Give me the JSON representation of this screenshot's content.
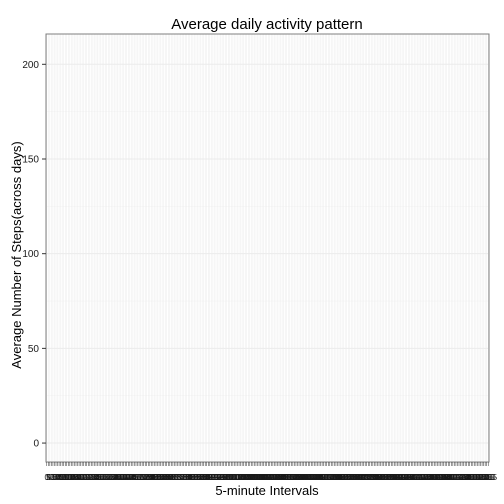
{
  "chart_data": {
    "type": "line",
    "title": "Average daily activity pattern",
    "xlabel": "5-minute Intervals",
    "ylabel": "Average Number of Steps(across days)",
    "ylim": [
      -10,
      216
    ],
    "yticks": [
      0,
      50,
      100,
      150,
      200
    ],
    "x_axis": "categorical, 288 intervals",
    "x_categories": [
      "0",
      "5",
      "10",
      "15",
      "20",
      "25",
      "30",
      "35",
      "40",
      "45",
      "50",
      "55",
      "100",
      "105",
      "110",
      "115",
      "120",
      "125",
      "130",
      "135",
      "140",
      "145",
      "150",
      "155",
      "200",
      "205",
      "210",
      "215",
      "220",
      "225",
      "230",
      "235",
      "240",
      "245",
      "250",
      "255",
      "300",
      "305",
      "310",
      "315",
      "320",
      "325",
      "330",
      "335",
      "340",
      "345",
      "350",
      "355",
      "400",
      "405",
      "410",
      "415",
      "420",
      "425",
      "430",
      "435",
      "440",
      "445",
      "450",
      "455",
      "500",
      "505",
      "510",
      "515",
      "520",
      "525",
      "530",
      "535",
      "540",
      "545",
      "550",
      "555",
      "600",
      "605",
      "610",
      "615",
      "620",
      "625",
      "630",
      "635",
      "640",
      "645",
      "650",
      "655",
      "700",
      "705",
      "710",
      "715",
      "720",
      "725",
      "730",
      "735",
      "740",
      "745",
      "750",
      "755",
      "800",
      "805",
      "810",
      "815",
      "820",
      "825",
      "830",
      "835",
      "840",
      "845",
      "850",
      "855",
      "900",
      "905",
      "910",
      "915",
      "920",
      "925",
      "930",
      "935",
      "940",
      "945",
      "950",
      "955",
      "1000",
      "1005",
      "1010",
      "1015",
      "1020",
      "1025",
      "1030",
      "1035",
      "1040",
      "1045",
      "1050",
      "1055",
      "1100",
      "1105",
      "1110",
      "1115",
      "1120",
      "1125",
      "1130",
      "1135",
      "1140",
      "1145",
      "1150",
      "1155",
      "1200",
      "1205",
      "1210",
      "1215",
      "1220",
      "1225",
      "1230",
      "1235",
      "1240",
      "1245",
      "1250",
      "1255",
      "1300",
      "1305",
      "1310",
      "1315",
      "1320",
      "1325",
      "1330",
      "1335",
      "1340",
      "1345",
      "1350",
      "1355",
      "1400",
      "1405",
      "1410",
      "1415",
      "1420",
      "1425",
      "1430",
      "1435",
      "1440",
      "1445",
      "1450",
      "1455",
      "1500",
      "1505",
      "1510",
      "1515",
      "1520",
      "1525",
      "1530",
      "1535",
      "1540",
      "1545",
      "1550",
      "1555",
      "1600",
      "1605",
      "1610",
      "1615",
      "1620",
      "1625",
      "1630",
      "1635",
      "1640",
      "1645",
      "1650",
      "1655",
      "1700",
      "1705",
      "1710",
      "1715",
      "1720",
      "1725",
      "1730",
      "1735",
      "1740",
      "1745",
      "1750",
      "1755",
      "1800",
      "1805",
      "1810",
      "1815",
      "1820",
      "1825",
      "1830",
      "1835",
      "1840",
      "1845",
      "1850",
      "1855",
      "1900",
      "1905",
      "1910",
      "1915",
      "1920",
      "1925",
      "1930",
      "1935",
      "1940",
      "1945",
      "1950",
      "1955",
      "2000",
      "2005",
      "2010",
      "2015",
      "2020",
      "2025",
      "2030",
      "2035",
      "2040",
      "2045",
      "2050",
      "2055",
      "2100",
      "2105",
      "2110",
      "2115",
      "2120",
      "2125",
      "2130",
      "2135",
      "2140",
      "2145",
      "2150",
      "2155",
      "2200",
      "2205",
      "2210",
      "2215",
      "2220",
      "2225",
      "2230",
      "2235",
      "2240",
      "2245",
      "2250",
      "2255",
      "2300",
      "2305",
      "2310",
      "2315",
      "2320",
      "2325",
      "2330",
      "2335",
      "2340",
      "2345",
      "2350",
      "2355"
    ],
    "series": [],
    "grid": true,
    "legend": "none",
    "colors": {
      "panel_background": "#ffffff",
      "panel_border": "#7f7f7f",
      "grid_major": "#ebebeb",
      "grid_minor": "#f5f5f5",
      "x_grid": "#ececec",
      "tick": "#333333",
      "x_tick_label": "#1a1a1a"
    }
  }
}
